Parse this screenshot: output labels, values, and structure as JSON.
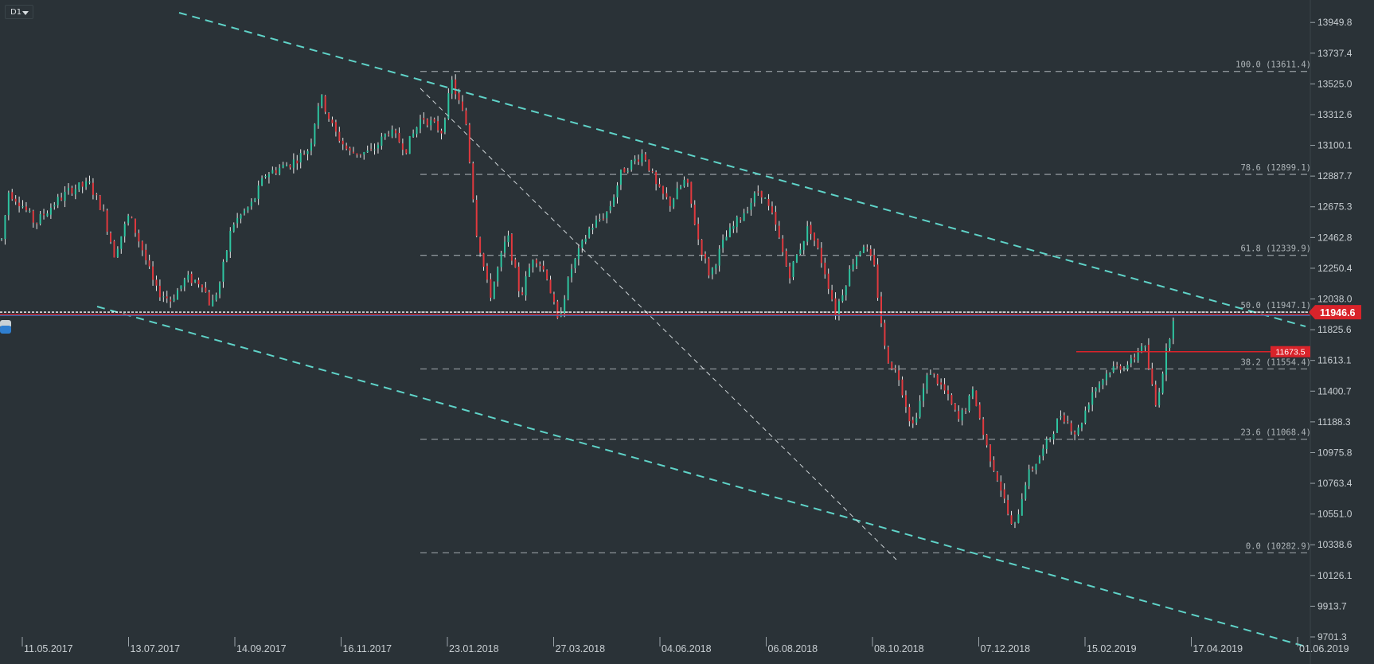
{
  "timeframe": "D1",
  "colors": {
    "background": "#2a3237",
    "bull": "#2ec4a0",
    "bear": "#e0393e",
    "wick": "#e6e6e6",
    "channel": "#5fd3c8",
    "fib_line": "#8c9398",
    "price_badge": "#d9232a",
    "blue_line": "#2f7fd0"
  },
  "chart_data": {
    "type": "candlestick",
    "y_axis": {
      "min": 9701.3,
      "max": 14050,
      "ticks": [
        "13949.8",
        "13737.4",
        "13525.0",
        "13312.6",
        "13100.1",
        "12887.7",
        "12675.3",
        "12462.8",
        "12250.4",
        "12038.0",
        "11825.6",
        "11613.1",
        "11400.7",
        "11188.3",
        "10975.8",
        "10763.4",
        "10551.0",
        "10338.6",
        "10126.1",
        "9913.7",
        "9701.3"
      ]
    },
    "x_axis": {
      "labels": [
        "11.05.2017",
        "13.07.2017",
        "14.09.2017",
        "16.11.2017",
        "23.01.2018",
        "27.03.2018",
        "04.06.2018",
        "06.08.2018",
        "08.10.2018",
        "07.12.2018",
        "15.02.2019",
        "17.04.2019",
        "01.06.2019"
      ]
    },
    "price_path": [
      [
        0,
        12450
      ],
      [
        8,
        12780
      ],
      [
        22,
        12700
      ],
      [
        38,
        12560
      ],
      [
        60,
        12700
      ],
      [
        80,
        12800
      ],
      [
        100,
        12830
      ],
      [
        115,
        12650
      ],
      [
        128,
        12350
      ],
      [
        145,
        12620
      ],
      [
        160,
        12380
      ],
      [
        175,
        12100
      ],
      [
        192,
        12030
      ],
      [
        210,
        12180
      ],
      [
        228,
        12150
      ],
      [
        238,
        11980
      ],
      [
        248,
        12150
      ],
      [
        262,
        12550
      ],
      [
        285,
        12700
      ],
      [
        300,
        12900
      ],
      [
        330,
        12980
      ],
      [
        350,
        13080
      ],
      [
        362,
        13450
      ],
      [
        378,
        13200
      ],
      [
        395,
        13050
      ],
      [
        420,
        13050
      ],
      [
        440,
        13200
      ],
      [
        460,
        13080
      ],
      [
        478,
        13300
      ],
      [
        500,
        13200
      ],
      [
        512,
        13540
      ],
      [
        528,
        13250
      ],
      [
        540,
        12500
      ],
      [
        555,
        12050
      ],
      [
        575,
        12480
      ],
      [
        590,
        12050
      ],
      [
        605,
        12350
      ],
      [
        620,
        12200
      ],
      [
        632,
        11880
      ],
      [
        648,
        12250
      ],
      [
        668,
        12520
      ],
      [
        690,
        12650
      ],
      [
        705,
        12920
      ],
      [
        730,
        13050
      ],
      [
        745,
        12800
      ],
      [
        760,
        12700
      ],
      [
        778,
        12870
      ],
      [
        792,
        12450
      ],
      [
        805,
        12200
      ],
      [
        822,
        12450
      ],
      [
        845,
        12650
      ],
      [
        862,
        12800
      ],
      [
        878,
        12580
      ],
      [
        895,
        12200
      ],
      [
        918,
        12550
      ],
      [
        935,
        12250
      ],
      [
        948,
        11950
      ],
      [
        968,
        12300
      ],
      [
        980,
        12420
      ],
      [
        992,
        12250
      ],
      [
        1005,
        11650
      ],
      [
        1020,
        11500
      ],
      [
        1035,
        11150
      ],
      [
        1055,
        11550
      ],
      [
        1072,
        11400
      ],
      [
        1088,
        11200
      ],
      [
        1105,
        11400
      ],
      [
        1118,
        11050
      ],
      [
        1135,
        10750
      ],
      [
        1150,
        10420
      ],
      [
        1165,
        10800
      ],
      [
        1185,
        11000
      ],
      [
        1205,
        11250
      ],
      [
        1222,
        11100
      ],
      [
        1240,
        11400
      ],
      [
        1260,
        11550
      ],
      [
        1285,
        11600
      ],
      [
        1298,
        11750
      ],
      [
        1312,
        11300
      ],
      [
        1325,
        11700
      ],
      [
        1333,
        11950
      ]
    ],
    "annotations": {
      "fib_levels": [
        {
          "label": "100.0 (13611.4)",
          "price": 13611.4
        },
        {
          "label": "78.6 (12899.1)",
          "price": 12899.1
        },
        {
          "label": "61.8 (12339.9)",
          "price": 12339.9
        },
        {
          "label": "50.0 (11947.1)",
          "price": 11947.1
        },
        {
          "label": "38.2 (11554.4)",
          "price": 11554.4
        },
        {
          "label": "23.6 (11068.4)",
          "price": 11068.4
        },
        {
          "label": "0.0 (10282.9)",
          "price": 10282.9
        }
      ],
      "current_price": {
        "label": "11946.6",
        "price": 11946.6
      },
      "horizontal_level": {
        "label": "11673.5",
        "price": 11673.5
      },
      "blue_level_price": 11925
    }
  }
}
